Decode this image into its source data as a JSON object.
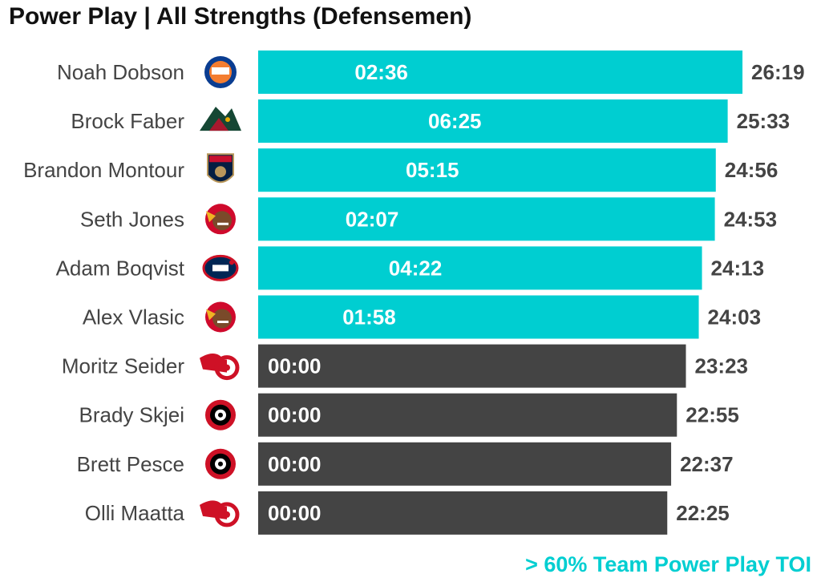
{
  "title": "Power Play | All Strengths (Defensemen)",
  "legend_note": "> 60% Team Power Play TOI",
  "colors": {
    "highlight": "#00CED1",
    "default": "#444444"
  },
  "chart_data": {
    "type": "bar",
    "orientation": "horizontal",
    "title": "Power Play | All Strengths (Defensemen)",
    "value_unit": "minutes (mm:ss)",
    "categories": [
      "Noah Dobson",
      "Brock Faber",
      "Brandon Montour",
      "Seth Jones",
      "Adam Boqvist",
      "Alex Vlasic",
      "Moritz Seider",
      "Brady Skjei",
      "Brett Pesce",
      "Olli Maatta"
    ],
    "teams": [
      "NYI",
      "MIN",
      "FLA",
      "CHI",
      "CBJ",
      "CHI",
      "DET",
      "CAR",
      "CAR",
      "DET"
    ],
    "team_icons": [
      "islanders-logo-icon",
      "wild-logo-icon",
      "panthers-logo-icon",
      "blackhawks-logo-icon",
      "blue-jackets-logo-icon",
      "blackhawks-logo-icon",
      "red-wings-logo-icon",
      "hurricanes-logo-icon",
      "hurricanes-logo-icon",
      "red-wings-logo-icon"
    ],
    "totals": [
      "26:19",
      "25:33",
      "24:56",
      "24:53",
      "24:13",
      "24:03",
      "23:23",
      "22:55",
      "22:37",
      "22:25"
    ],
    "power_play_time": [
      "02:36",
      "06:25",
      "05:15",
      "02:07",
      "04:22",
      "01:58",
      "00:00",
      "00:00",
      "00:00",
      "00:00"
    ],
    "above_60pct_team_pp_toi": [
      true,
      true,
      true,
      true,
      true,
      true,
      false,
      false,
      false,
      false
    ]
  }
}
